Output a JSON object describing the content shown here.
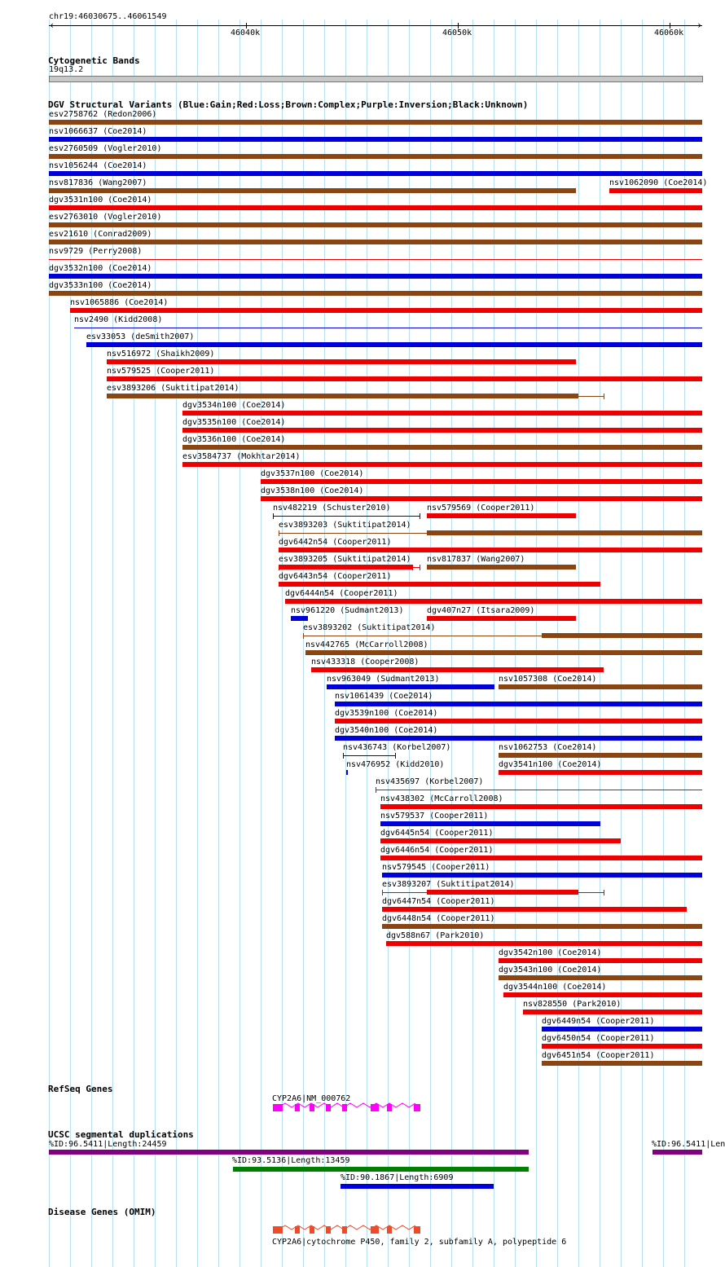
{
  "coord_label": "chr19:46030675..46061549",
  "ruler_ticks": [
    "46040k",
    "46050k",
    "46060k"
  ],
  "colors": {
    "gain": "#0000dd",
    "loss": "#ee0000",
    "complex": "#8b4513",
    "grid": "#b9e0ee",
    "refseq": "#ff00ff",
    "omim": "#ee4b2b",
    "seg_purple": "#800080",
    "seg_green": "#008000",
    "seg_blue": "#0000dd",
    "band": "#c8c8c8"
  },
  "tracks": {
    "cytoband": {
      "title": "Cytogenetic Bands",
      "band": "19q13.2"
    },
    "dgv": {
      "title": "DGV Structural Variants (Blue:Gain;Red:Loss;Brown:Complex;Purple:Inversion;Black:Unknown)",
      "variants": [
        "esv2758762 (Redon2006)",
        "nsv1066637 (Coe2014)",
        "esv2760509 (Vogler2010)",
        "nsv1056244 (Coe2014)",
        "nsv817836 (Wang2007)",
        "nsv1062090 (Coe2014)",
        "dgv3531n100 (Coe2014)",
        "esv2763010 (Vogler2010)",
        "esv21610 (Conrad2009)",
        "nsv9729 (Perry2008)",
        "dgv3532n100 (Coe2014)",
        "dgv3533n100 (Coe2014)",
        "nsv1065886 (Coe2014)",
        "nsv2490 (Kidd2008)",
        "esv33053 (deSmith2007)",
        "nsv516972 (Shaikh2009)",
        "nsv579525 (Cooper2011)",
        "esv3893206 (Suktitipat2014)",
        "dgv3534n100 (Coe2014)",
        "dgv3535n100 (Coe2014)",
        "dgv3536n100 (Coe2014)",
        "esv3584737 (Mokhtar2014)",
        "dgv3537n100 (Coe2014)",
        "dgv3538n100 (Coe2014)",
        "nsv482219 (Schuster2010)",
        "nsv579569 (Cooper2011)",
        "esv3893203 (Suktitipat2014)",
        "dgv6442n54 (Cooper2011)",
        "esv3893205 (Suktitipat2014)",
        "nsv817837 (Wang2007)",
        "dgv6443n54 (Cooper2011)",
        "dgv6444n54 (Cooper2011)",
        "nsv961220 (Sudmant2013)",
        "dgv407n27 (Itsara2009)",
        "esv3893202 (Suktitipat2014)",
        "nsv442765 (McCarroll2008)",
        "nsv433318 (Cooper2008)",
        "nsv963049 (Sudmant2013)",
        "nsv1057308 (Coe2014)",
        "nsv1061439 (Coe2014)",
        "dgv3539n100 (Coe2014)",
        "dgv3540n100 (Coe2014)",
        "nsv436743 (Korbel2007)",
        "nsv1062753 (Coe2014)",
        "nsv476952 (Kidd2010)",
        "dgv3541n100 (Coe2014)",
        "nsv435697 (Korbel2007)",
        "nsv438302 (McCarroll2008)",
        "nsv579537 (Cooper2011)",
        "dgv6445n54 (Cooper2011)",
        "dgv6446n54 (Cooper2011)",
        "nsv579545 (Cooper2011)",
        "esv3893207 (Suktitipat2014)",
        "dgv6447n54 (Cooper2011)",
        "dgv6448n54 (Cooper2011)",
        "dgv588n67 (Park2010)",
        "dgv3542n100 (Coe2014)",
        "dgv3543n100 (Coe2014)",
        "dgv3544n100 (Coe2014)",
        "nsv828550 (Park2010)",
        "dgv6449n54 (Cooper2011)",
        "dgv6450n54 (Cooper2011)",
        "dgv6451n54 (Cooper2011)"
      ]
    },
    "refseq": {
      "title": "RefSeq Genes",
      "gene": "CYP2A6|NM_000762"
    },
    "segdup": {
      "title": "UCSC segmental duplications",
      "features": [
        "%ID:96.5411|Length:24459",
        "%ID:96.5411|Len",
        "%ID:93.5136|Length:13459",
        "%ID:90.1867|Length:6909"
      ]
    },
    "omim": {
      "title": "Disease Genes (OMIM)",
      "gene": "CYP2A6|cytochrome P450, family 2, subfamily A, polypeptide 6"
    }
  }
}
